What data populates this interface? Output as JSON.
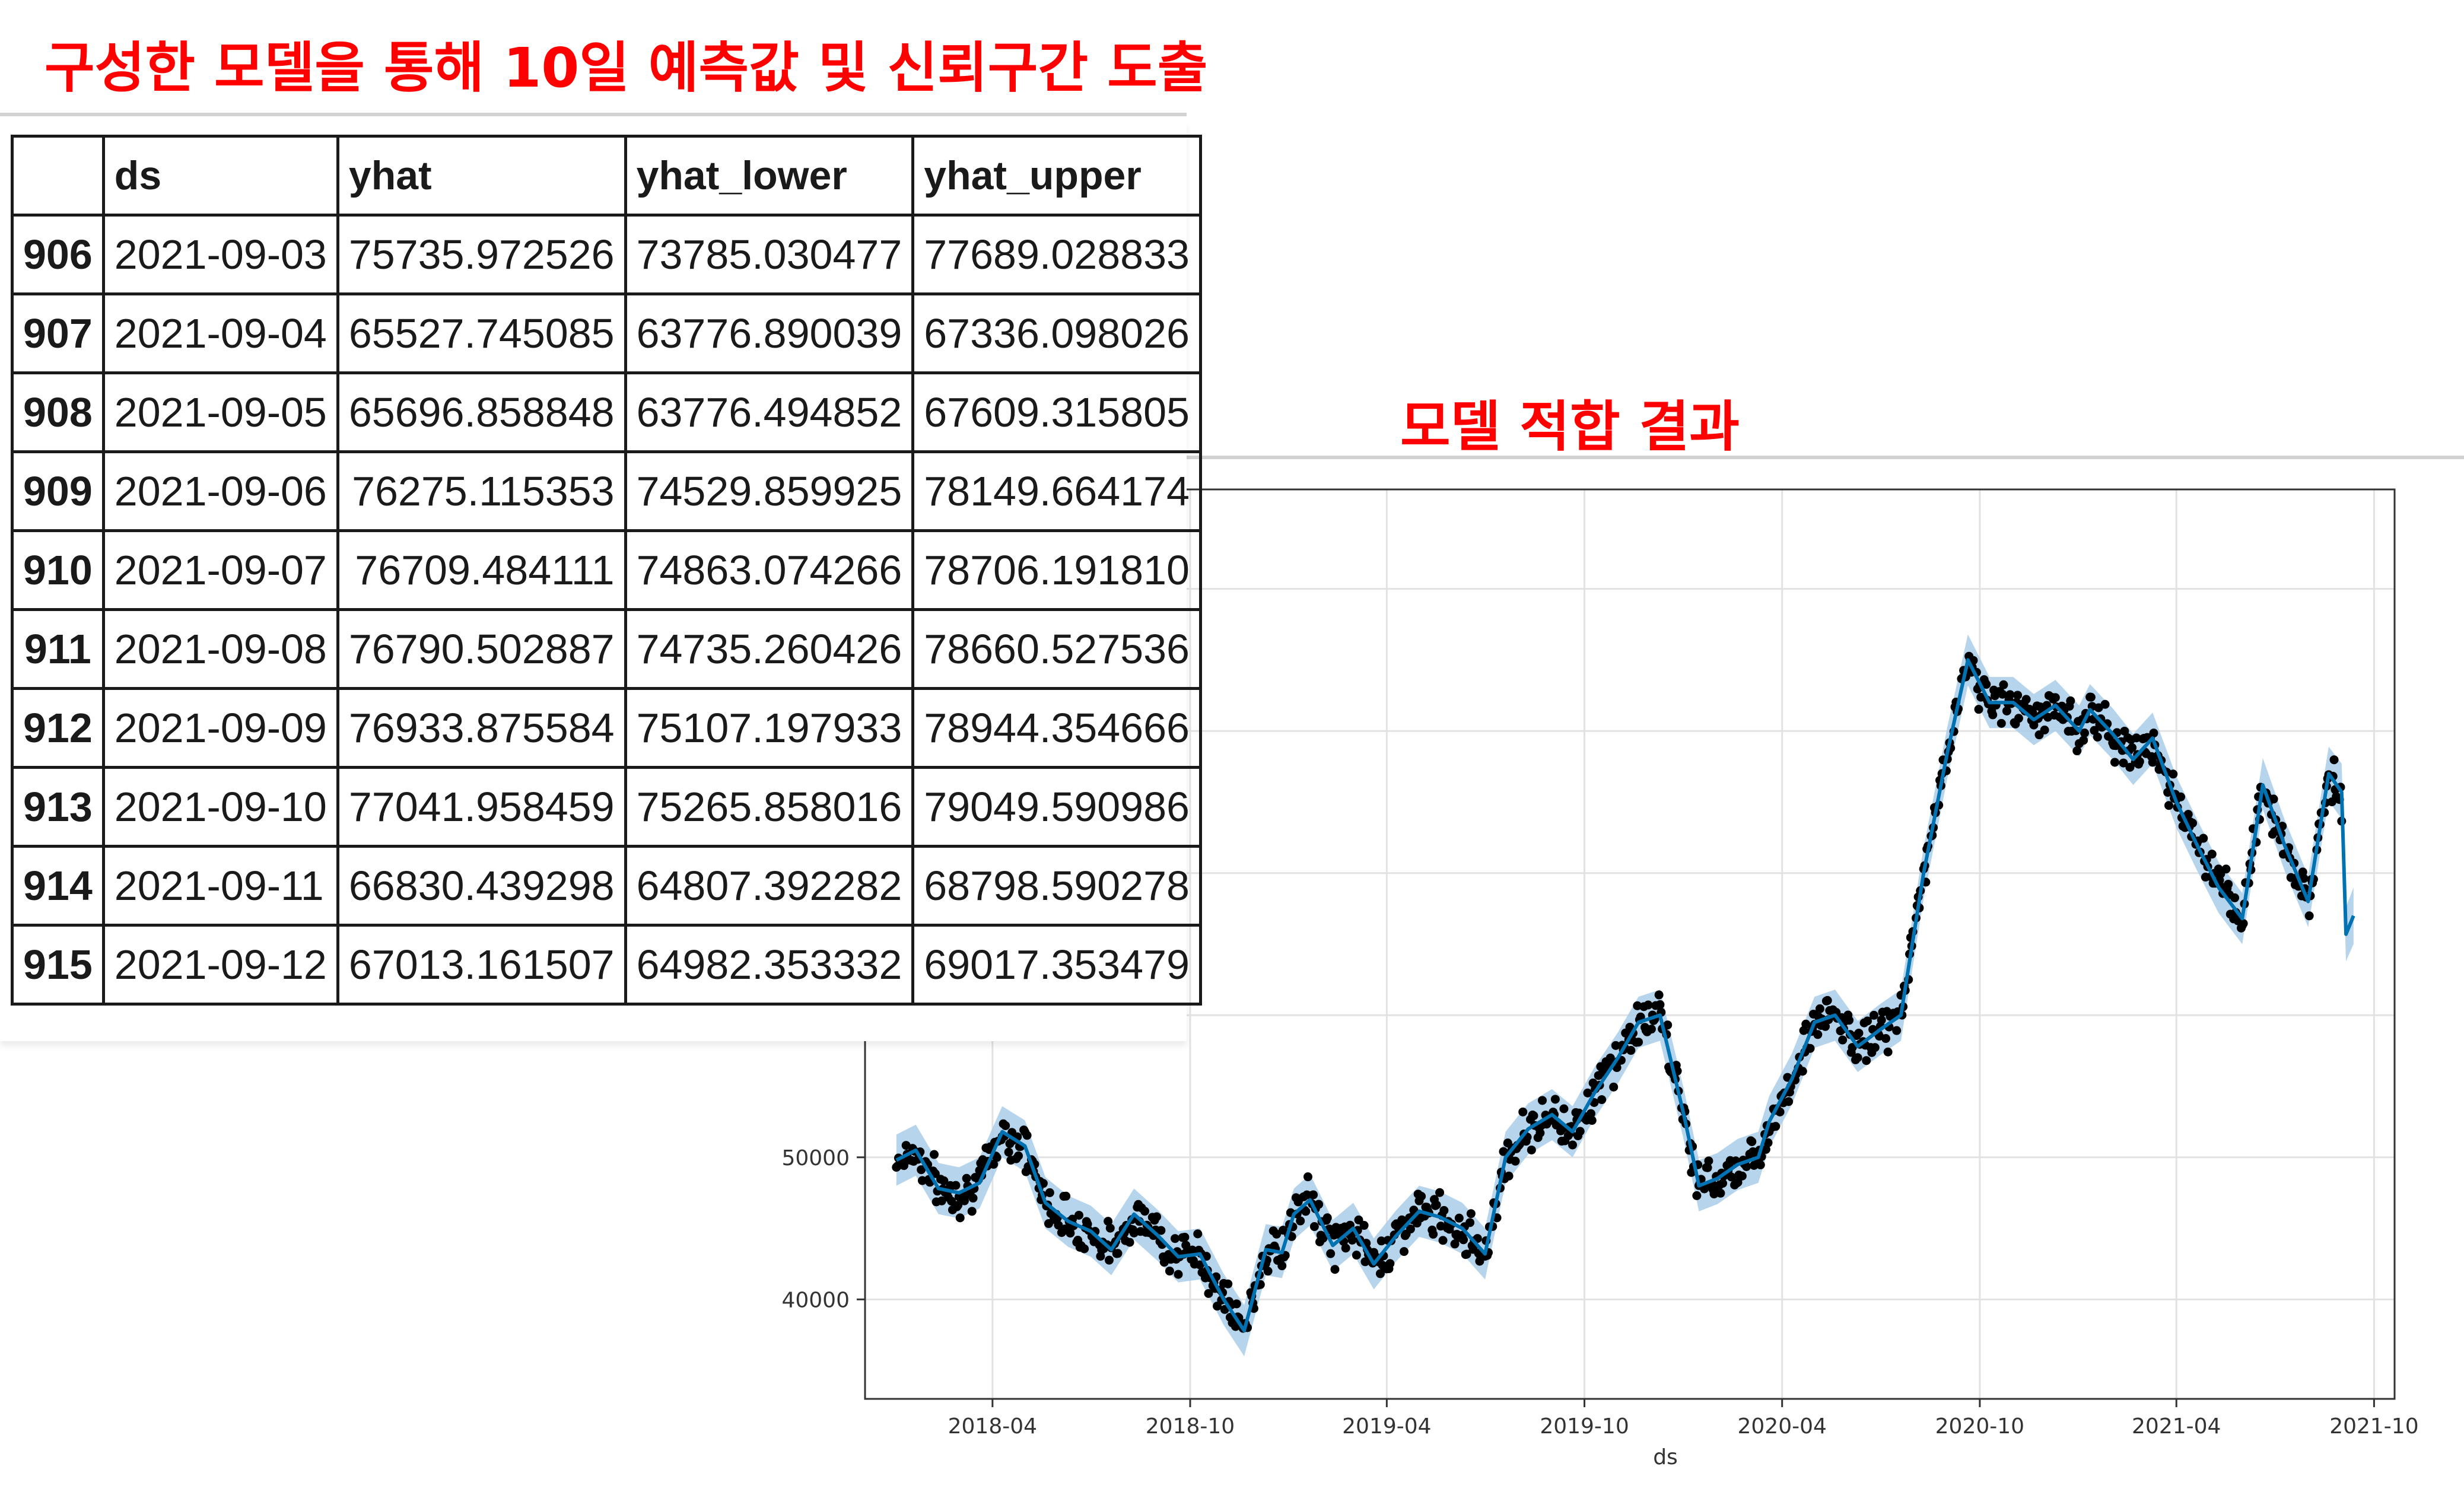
{
  "headings": {
    "forecast": "구성한 모델을 통해 10일 예측값 및 신뢰구간 도출",
    "fit": "모델 적합 결과"
  },
  "forecast_table": {
    "columns": [
      "",
      "ds",
      "yhat",
      "yhat_lower",
      "yhat_upper"
    ],
    "rows": [
      {
        "index": "906",
        "ds": "2021-09-03",
        "yhat": "75735.972526",
        "yhat_lower": "73785.030477",
        "yhat_upper": "77689.028833"
      },
      {
        "index": "907",
        "ds": "2021-09-04",
        "yhat": "65527.745085",
        "yhat_lower": "63776.890039",
        "yhat_upper": "67336.098026"
      },
      {
        "index": "908",
        "ds": "2021-09-05",
        "yhat": "65696.858848",
        "yhat_lower": "63776.494852",
        "yhat_upper": "67609.315805"
      },
      {
        "index": "909",
        "ds": "2021-09-06",
        "yhat": "76275.115353",
        "yhat_lower": "74529.859925",
        "yhat_upper": "78149.664174"
      },
      {
        "index": "910",
        "ds": "2021-09-07",
        "yhat": "76709.484111",
        "yhat_lower": "74863.074266",
        "yhat_upper": "78706.191810"
      },
      {
        "index": "911",
        "ds": "2021-09-08",
        "yhat": "76790.502887",
        "yhat_lower": "74735.260426",
        "yhat_upper": "78660.527536"
      },
      {
        "index": "912",
        "ds": "2021-09-09",
        "yhat": "76933.875584",
        "yhat_lower": "75107.197933",
        "yhat_upper": "78944.354666"
      },
      {
        "index": "913",
        "ds": "2021-09-10",
        "yhat": "77041.958459",
        "yhat_lower": "75265.858016",
        "yhat_upper": "79049.590986"
      },
      {
        "index": "914",
        "ds": "2021-09-11",
        "yhat": "66830.439298",
        "yhat_lower": "64807.392282",
        "yhat_upper": "68798.590278"
      },
      {
        "index": "915",
        "ds": "2021-09-12",
        "yhat": "67013.161507",
        "yhat_lower": "64982.353332",
        "yhat_upper": "69017.353479"
      }
    ]
  },
  "chart_data": {
    "type": "line",
    "xlabel": "ds",
    "ylabel": "",
    "xlim": [
      "2017-12-04",
      "2021-10-20"
    ],
    "ylim": [
      33000,
      97000
    ],
    "grid": true,
    "x_ticks": [
      "2018-04",
      "2018-10",
      "2019-04",
      "2019-10",
      "2020-04",
      "2020-10",
      "2021-04",
      "2021-10"
    ],
    "y_ticks": [
      40000,
      50000
    ],
    "colors": {
      "forecast": "#0072b2",
      "interval": "#a9cde8",
      "actual": "#000000",
      "grid": "#e2e2e2"
    },
    "series": [
      {
        "kind": "forecast",
        "x": [
          "2018-01-02",
          "2018-01-20",
          "2018-02-10",
          "2018-03-01",
          "2018-03-20",
          "2018-04-10",
          "2018-05-01",
          "2018-05-20",
          "2018-06-10",
          "2018-07-01",
          "2018-07-20",
          "2018-08-10",
          "2018-09-01",
          "2018-09-20",
          "2018-10-10",
          "2018-11-01",
          "2018-11-20",
          "2018-12-10",
          "2018-12-25",
          "2019-01-05",
          "2019-01-20",
          "2019-02-10",
          "2019-03-01",
          "2019-03-20",
          "2019-04-10",
          "2019-05-01",
          "2019-05-20",
          "2019-06-10",
          "2019-07-01",
          "2019-07-20",
          "2019-08-10",
          "2019-09-01",
          "2019-09-20",
          "2019-10-10",
          "2019-11-01",
          "2019-11-20",
          "2019-12-10",
          "2020-01-01",
          "2020-01-15",
          "2020-02-01",
          "2020-02-20",
          "2020-03-10",
          "2020-03-20",
          "2020-04-10",
          "2020-05-01",
          "2020-05-20",
          "2020-06-10",
          "2020-07-01",
          "2020-07-20",
          "2020-08-10",
          "2020-09-01",
          "2020-09-20",
          "2020-10-10",
          "2020-11-01",
          "2020-11-20",
          "2020-12-10",
          "2021-01-01",
          "2021-01-11",
          "2021-02-01",
          "2021-02-20",
          "2021-03-10",
          "2021-04-01",
          "2021-04-20",
          "2021-05-10",
          "2021-06-01",
          "2021-06-20",
          "2021-07-10",
          "2021-08-01",
          "2021-08-20",
          "2021-09-01",
          "2021-09-05",
          "2021-09-12"
        ],
        "yhat": [
          49800,
          50500,
          47800,
          47500,
          48200,
          51800,
          50800,
          46800,
          45500,
          44800,
          43500,
          46000,
          44500,
          43000,
          43200,
          40000,
          37800,
          43500,
          43300,
          46000,
          47000,
          43800,
          45000,
          42500,
          44500,
          46200,
          45800,
          45000,
          43200,
          50000,
          52000,
          53000,
          51800,
          54500,
          57000,
          59500,
          60000,
          53000,
          48000,
          48500,
          49500,
          50000,
          52500,
          55500,
          59500,
          60000,
          57800,
          59000,
          60000,
          70000,
          78500,
          85000,
          82000,
          82000,
          80800,
          81800,
          80000,
          81500,
          79800,
          78000,
          79500,
          75000,
          72000,
          69000,
          66800,
          76200,
          72000,
          68000,
          77000,
          75700,
          65700,
          67000
        ],
        "yhat_lower": [
          48000,
          48700,
          46000,
          45700,
          46400,
          50000,
          49000,
          45000,
          43700,
          43000,
          41700,
          44200,
          42700,
          41200,
          41400,
          38200,
          36000,
          41700,
          41500,
          44200,
          45200,
          42000,
          43200,
          40700,
          42700,
          44400,
          44000,
          43200,
          41400,
          48200,
          50200,
          51200,
          50000,
          52700,
          55200,
          57700,
          58200,
          51200,
          46200,
          46700,
          47700,
          48200,
          50700,
          53700,
          57700,
          58200,
          56000,
          57200,
          58200,
          68200,
          76700,
          83200,
          80200,
          80200,
          79000,
          80000,
          78200,
          79700,
          78000,
          76200,
          77700,
          73200,
          70200,
          67200,
          65000,
          74500,
          70200,
          66200,
          75100,
          73800,
          63800,
          65000
        ],
        "yhat_upper": [
          51600,
          52300,
          49600,
          49300,
          50000,
          53600,
          52600,
          48600,
          47300,
          46600,
          45300,
          47800,
          46300,
          44800,
          45000,
          41800,
          39600,
          45300,
          45100,
          47800,
          48800,
          45600,
          46800,
          44300,
          46300,
          48000,
          47600,
          46800,
          45000,
          51800,
          53800,
          54800,
          53600,
          56300,
          58800,
          61300,
          61800,
          54800,
          49800,
          50300,
          51300,
          51800,
          54300,
          57300,
          61300,
          61800,
          59600,
          60800,
          61800,
          71800,
          80300,
          86800,
          83800,
          83800,
          82600,
          83600,
          81800,
          83300,
          81600,
          79800,
          81300,
          76800,
          73800,
          70800,
          68600,
          78100,
          73800,
          69800,
          78900,
          77700,
          67600,
          69000
        ]
      }
    ]
  }
}
